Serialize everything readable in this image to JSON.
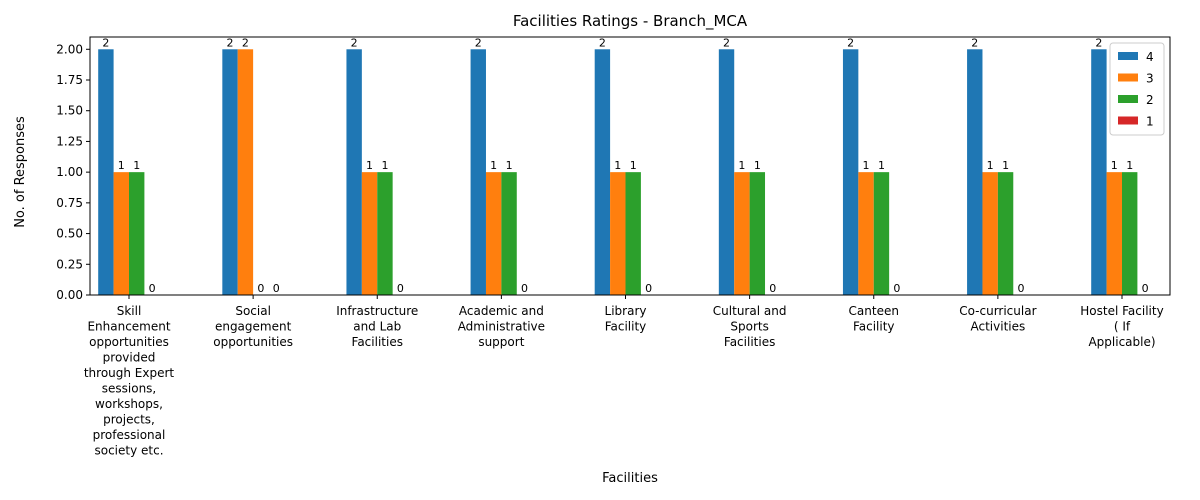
{
  "chart_data": {
    "type": "bar",
    "title": "Facilities Ratings - Branch_MCA",
    "xlabel": "Facilities",
    "ylabel": "No. of Responses",
    "ylim": [
      0,
      2.1
    ],
    "yticks": [
      "0.00",
      "0.25",
      "0.50",
      "0.75",
      "1.00",
      "1.25",
      "1.50",
      "1.75",
      "2.00"
    ],
    "categories": [
      [
        "Skill",
        "Enhancement",
        "opportunities",
        "provided",
        "through Expert",
        "sessions,",
        "workshops,",
        "projects,",
        "professional",
        "society etc."
      ],
      [
        "Social",
        "engagement",
        "opportunities"
      ],
      [
        "Infrastructure",
        "and Lab",
        "Facilities"
      ],
      [
        "Academic and",
        "Administrative",
        "support"
      ],
      [
        "Library",
        "Facility"
      ],
      [
        "Cultural and",
        "Sports",
        "Facilities"
      ],
      [
        "Canteen",
        "Facility"
      ],
      [
        "Co-curricular",
        "Activities"
      ],
      [
        "Hostel Facility",
        "( If",
        "Applicable)"
      ]
    ],
    "series": [
      {
        "name": "4",
        "color": "#1f77b4",
        "values": [
          2,
          2,
          2,
          2,
          2,
          2,
          2,
          2,
          2
        ]
      },
      {
        "name": "3",
        "color": "#ff7f0e",
        "values": [
          1,
          2,
          1,
          1,
          1,
          1,
          1,
          1,
          1
        ]
      },
      {
        "name": "2",
        "color": "#2ca02c",
        "values": [
          1,
          0,
          1,
          1,
          1,
          1,
          1,
          1,
          1
        ]
      },
      {
        "name": "1",
        "color": "#d62728",
        "values": [
          0,
          0,
          0,
          0,
          0,
          0,
          0,
          0,
          0
        ]
      }
    ],
    "legend": "top-right",
    "grid": false
  }
}
